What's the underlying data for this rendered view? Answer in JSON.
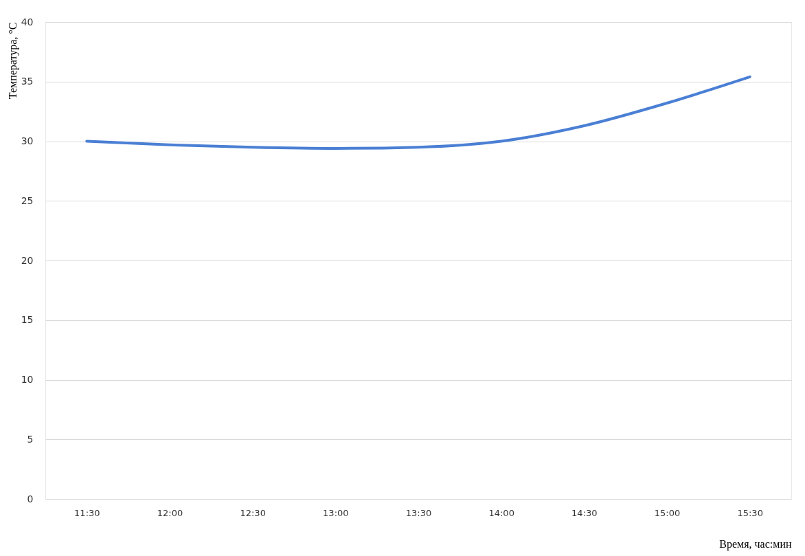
{
  "chart_data": {
    "type": "line",
    "xlabel": "Время, час:мин",
    "ylabel": "Температура, °C",
    "categories": [
      "11:30",
      "12:00",
      "12:30",
      "13:00",
      "13:30",
      "14:00",
      "14:30",
      "15:00",
      "15:30"
    ],
    "series": [
      {
        "color": "#4a7fd4",
        "values": [
          30.0,
          29.7,
          29.5,
          29.4,
          29.5,
          30.0,
          31.3,
          33.2,
          35.4
        ]
      }
    ],
    "ylim": [
      0,
      40
    ],
    "yticks": [
      0,
      5,
      10,
      15,
      20,
      25,
      30,
      35,
      40
    ],
    "grid": "y"
  }
}
